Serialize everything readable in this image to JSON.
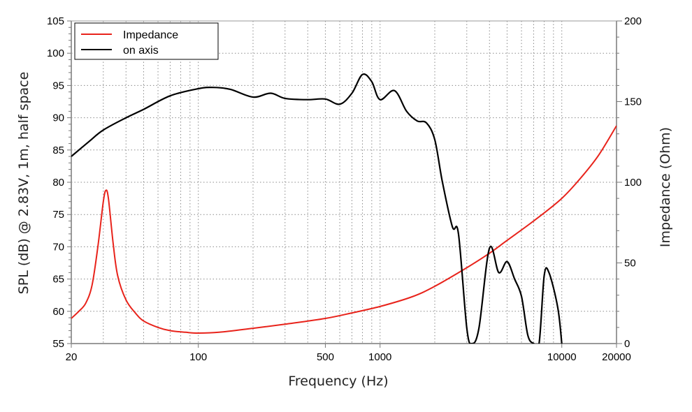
{
  "chart_data": {
    "type": "line",
    "title": "",
    "xlabel": "Frequency (Hz)",
    "ylabel": "SPL (dB) @ 2.83V, 1m, half space",
    "y2label": "Impedance (Ohm)",
    "xscale": "log",
    "xlim": [
      20,
      20000
    ],
    "ylim": [
      55,
      105
    ],
    "y2lim": [
      0,
      200
    ],
    "grid": true,
    "legend_position": "upper-left",
    "x_ticks": [
      20,
      100,
      500,
      1000,
      10000,
      20000
    ],
    "x_tick_labels": [
      "20",
      "100",
      "500",
      "1000",
      "10000",
      "20000"
    ],
    "y_ticks": [
      55,
      60,
      65,
      70,
      75,
      80,
      85,
      90,
      95,
      100,
      105
    ],
    "y_tick_labels": [
      "55",
      "60",
      "65",
      "70",
      "75",
      "80",
      "85",
      "90",
      "95",
      "100",
      "105"
    ],
    "y2_ticks": [
      0,
      50,
      100,
      150,
      200
    ],
    "y2_tick_labels": [
      "0",
      "50",
      "100",
      "150",
      "200"
    ],
    "series": [
      {
        "name": "Impedance",
        "axis": "right",
        "color": "#e8231b",
        "x": [
          20,
          22,
          24,
          26,
          28,
          30,
          31,
          32,
          34,
          36,
          40,
          45,
          50,
          60,
          70,
          85,
          100,
          130,
          200,
          300,
          500,
          700,
          1000,
          1500,
          2000,
          3000,
          4000,
          5000,
          7000,
          10000,
          13000,
          16000,
          20000
        ],
        "values": [
          15.6,
          20,
          25,
          36,
          60,
          88,
          95,
          90,
          62,
          42,
          27,
          19,
          14,
          10,
          8,
          7,
          6.5,
          7,
          9.5,
          12,
          15.6,
          19,
          23,
          29,
          35.5,
          47,
          56,
          64,
          76,
          90,
          104,
          117,
          135
        ]
      },
      {
        "name": "on axis",
        "axis": "left",
        "color": "#000000",
        "x": [
          20,
          25,
          30,
          40,
          50,
          70,
          100,
          120,
          150,
          200,
          250,
          300,
          400,
          500,
          600,
          700,
          800,
          900,
          1000,
          1200,
          1400,
          1600,
          1800,
          2000,
          2200,
          2500,
          2700,
          3000,
          3200,
          3500,
          4000,
          4500,
          5000,
          5500,
          6000,
          6500,
          7000,
          7500,
          8000,
          8500,
          9500,
          10000
        ],
        "values": [
          84.0,
          86.3,
          88.1,
          90.0,
          91.3,
          93.4,
          94.5,
          94.7,
          94.4,
          93.2,
          93.8,
          93.0,
          92.8,
          92.9,
          92.1,
          93.8,
          96.7,
          95.6,
          92.8,
          94.2,
          91.0,
          89.5,
          89.2,
          86.6,
          80.1,
          73.1,
          72.0,
          57.4,
          55.0,
          57.4,
          69.8,
          66.0,
          67.7,
          65.0,
          62.3,
          56.3,
          55.0,
          55.0,
          65.5,
          66.0,
          60.6,
          55.0
        ]
      }
    ]
  },
  "legend": {
    "items": [
      {
        "label": "Impedance",
        "color": "#e8231b"
      },
      {
        "label": "on axis",
        "color": "#000000"
      }
    ]
  },
  "axes": {
    "x_title": "Frequency (Hz)",
    "y_title": "SPL (dB) @ 2.83V, 1m, half space",
    "y2_title": "Impedance (Ohm)"
  }
}
